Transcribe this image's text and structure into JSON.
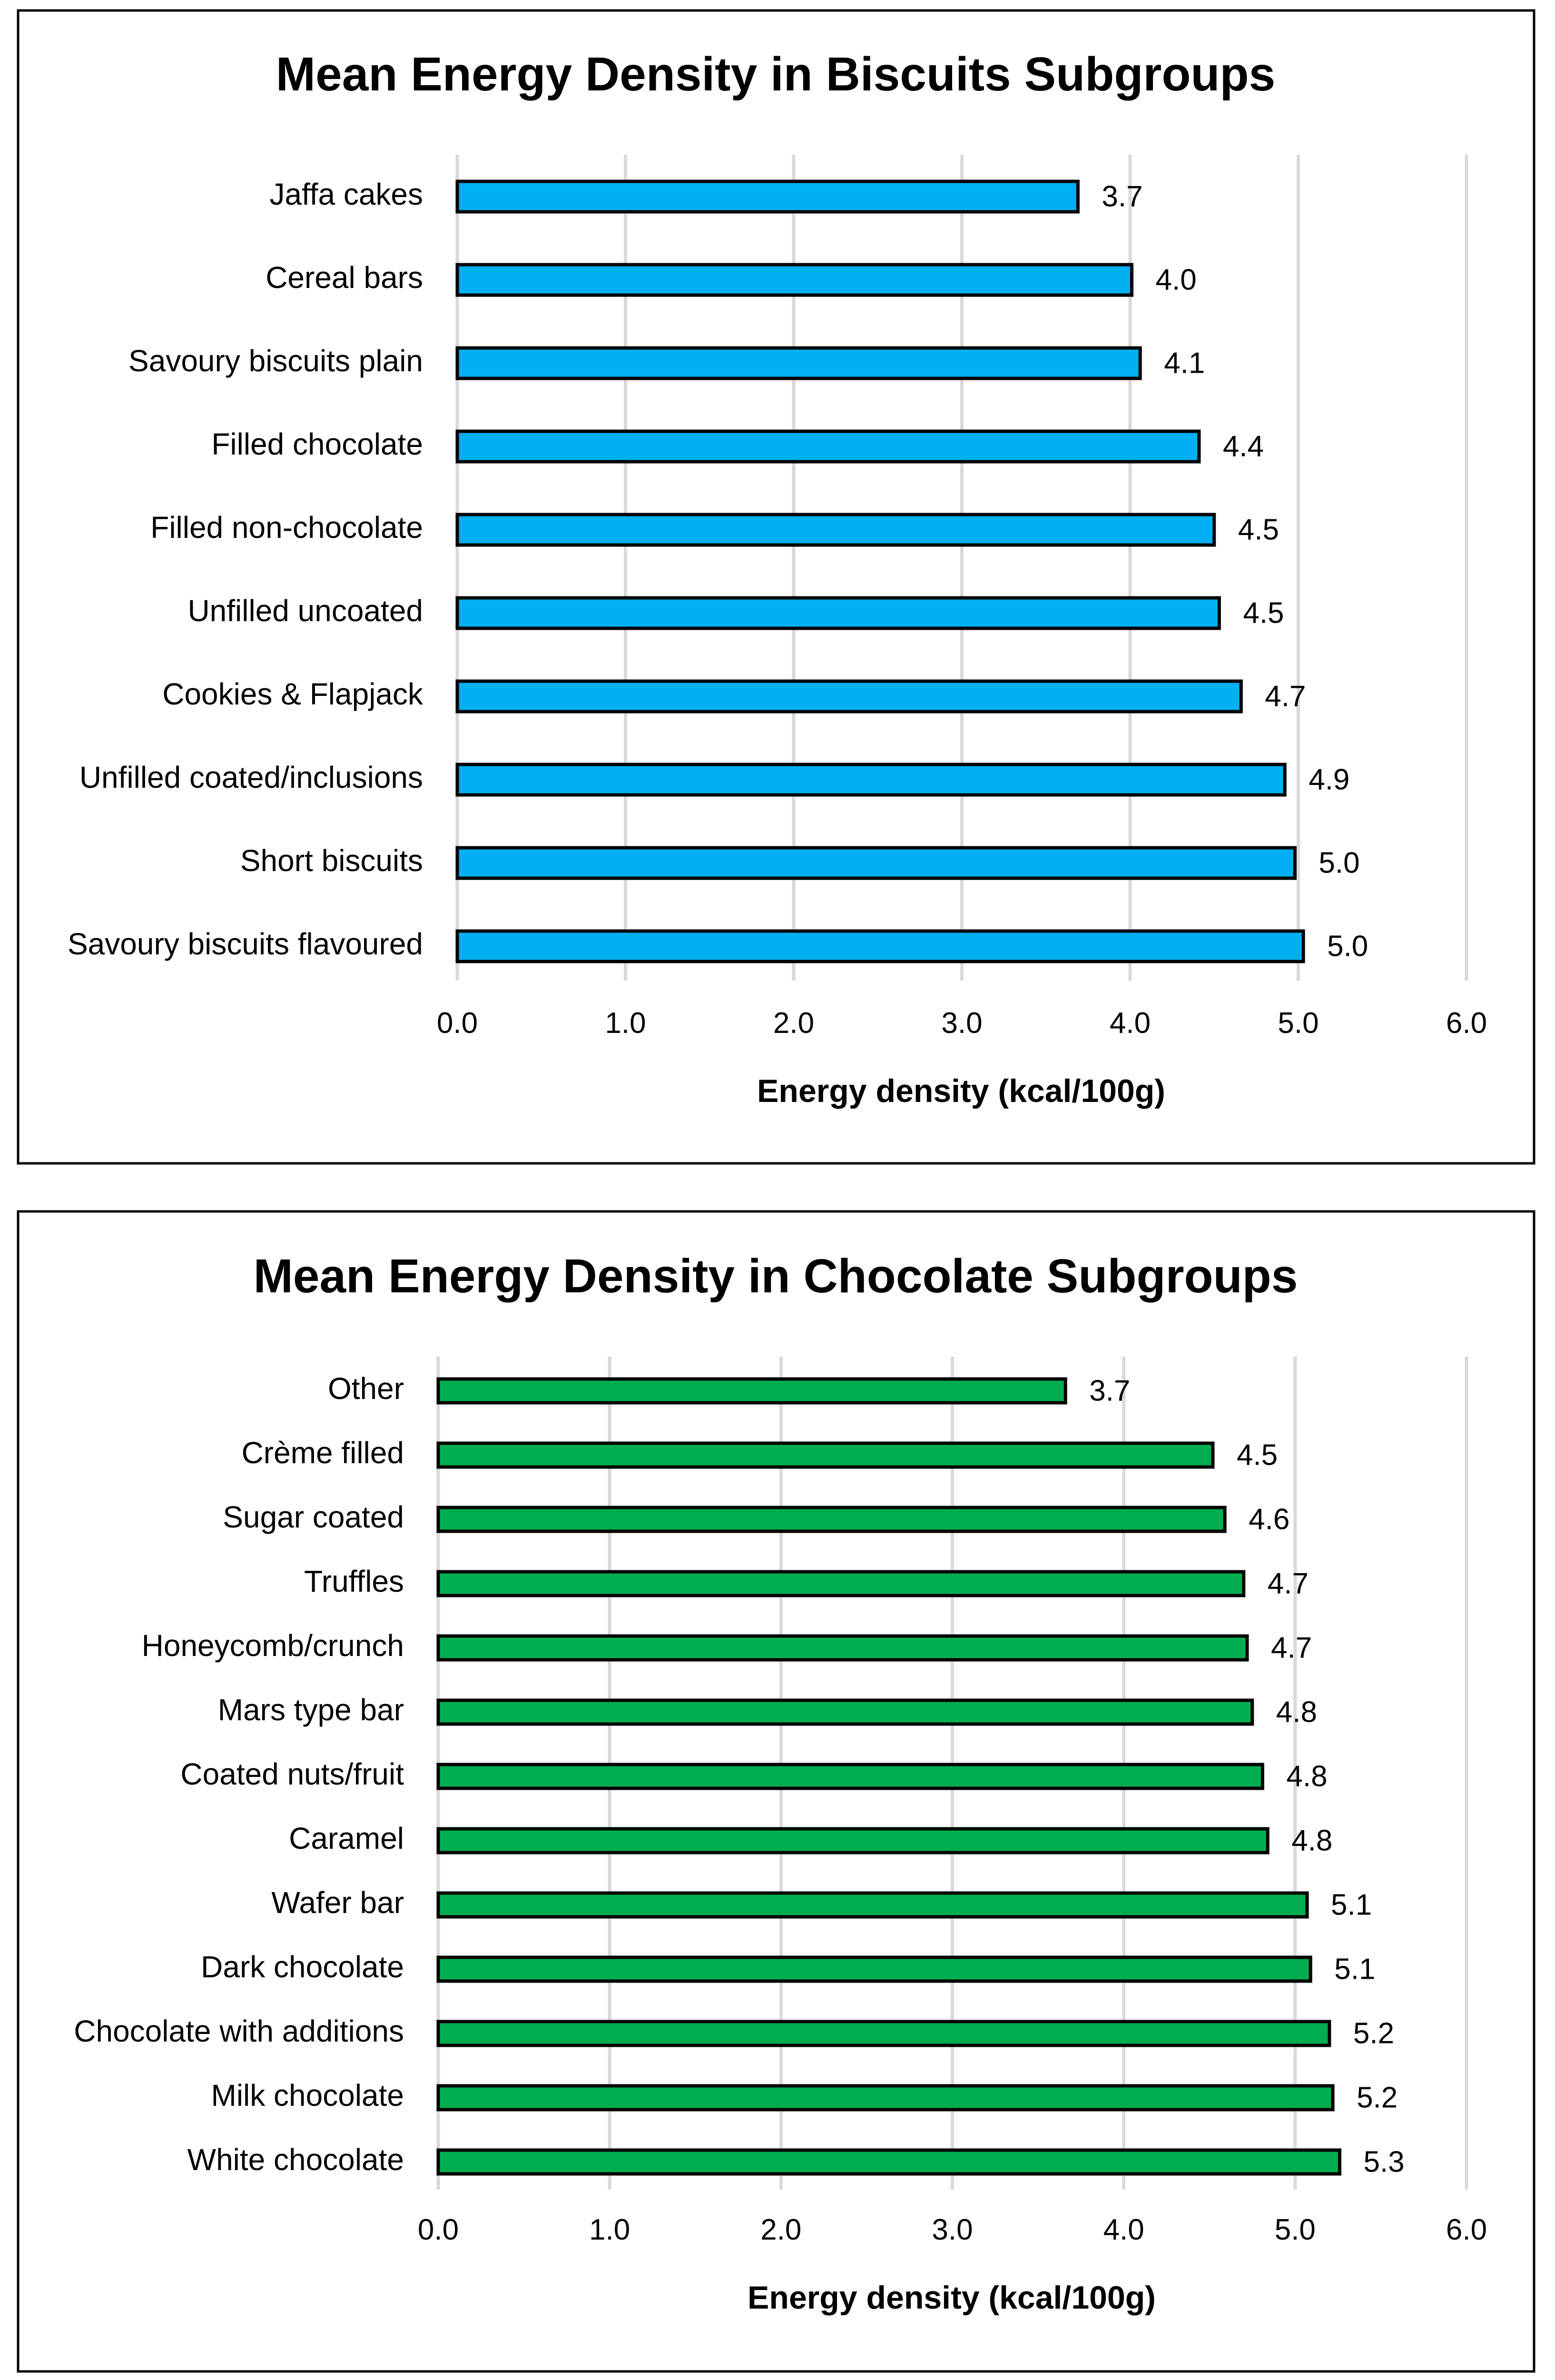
{
  "chart_data": [
    {
      "type": "bar",
      "orientation": "horizontal",
      "title": "Mean Energy Density in Biscuits Subgroups",
      "xlabel": "Energy density (kcal/100g)",
      "ylabel": "",
      "xlim": [
        0,
        6
      ],
      "xticks": [
        "0.0",
        "1.0",
        "2.0",
        "3.0",
        "4.0",
        "5.0",
        "6.0"
      ],
      "grid": true,
      "color": "#00B0F0",
      "categories": [
        "Jaffa cakes",
        "Cereal bars",
        "Savoury biscuits plain",
        "Filled chocolate",
        "Filled non-chocolate",
        "Unfilled uncoated",
        "Cookies & Flapjack",
        "Unfilled coated/inclusions",
        "Short biscuits",
        "Savoury biscuits flavoured"
      ],
      "values": [
        3.69,
        4.01,
        4.06,
        4.41,
        4.5,
        4.53,
        4.66,
        4.92,
        4.98,
        5.03
      ],
      "data_labels": [
        "3.7",
        "4.0",
        "4.1",
        "4.4",
        "4.5",
        "4.5",
        "4.7",
        "4.9",
        "5.0",
        "5.0"
      ]
    },
    {
      "type": "bar",
      "orientation": "horizontal",
      "title": "Mean Energy Density in Chocolate Subgroups",
      "xlabel": "Energy density (kcal/100g)",
      "ylabel": "",
      "xlim": [
        0,
        6
      ],
      "xticks": [
        "0.0",
        "1.0",
        "2.0",
        "3.0",
        "4.0",
        "5.0",
        "6.0"
      ],
      "grid": true,
      "color": "#00AE50",
      "categories": [
        "Other",
        "Crème filled",
        "Sugar coated",
        "Truffles",
        "Honeycomb/crunch",
        "Mars type bar",
        "Coated nuts/fruit",
        "Caramel",
        "Wafer bar",
        "Dark chocolate",
        "Chocolate with additions",
        "Milk chocolate",
        "White chocolate"
      ],
      "values": [
        3.66,
        4.52,
        4.59,
        4.7,
        4.72,
        4.75,
        4.81,
        4.84,
        5.07,
        5.09,
        5.2,
        5.22,
        5.26
      ],
      "data_labels": [
        "3.7",
        "4.5",
        "4.6",
        "4.7",
        "4.7",
        "4.8",
        "4.8",
        "4.8",
        "5.1",
        "5.1",
        "5.2",
        "5.2",
        "5.3"
      ]
    }
  ]
}
